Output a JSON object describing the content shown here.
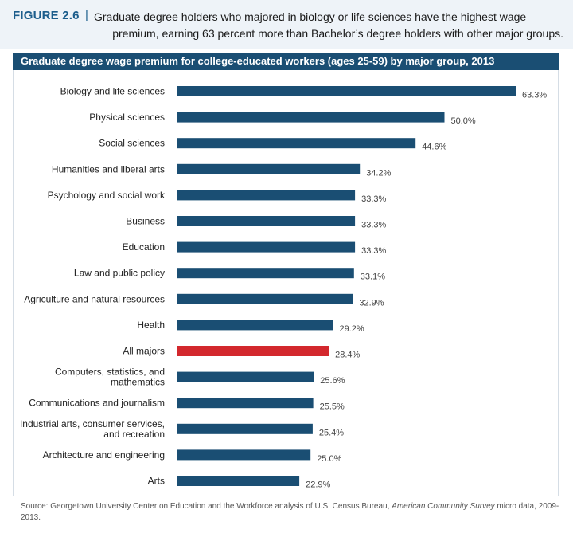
{
  "figure": {
    "label": "FIGURE 2.6",
    "separator": "|",
    "caption_line1": "Graduate degree holders who majored in biology or life sciences have the highest wage",
    "caption_line2": "premium, earning 63 percent more than Bachelor’s degree holders with other major groups."
  },
  "source": {
    "prefix": "Source: Georgetown University Center on Education and the Workforce analysis of U.S. Census Bureau, ",
    "italic": "American Community Survey",
    "suffix": " micro data, 2009-2013."
  },
  "chart_data": {
    "type": "bar",
    "orientation": "horizontal",
    "title": "Graduate degree wage premium for college-educated workers (ages 25-59) by major group, 2013",
    "categories": [
      [
        "Biology and life sciences"
      ],
      [
        "Physical sciences"
      ],
      [
        "Social sciences"
      ],
      [
        "Humanities and liberal arts"
      ],
      [
        "Psychology and social work"
      ],
      [
        "Business"
      ],
      [
        "Education"
      ],
      [
        "Law and public policy"
      ],
      [
        "Agriculture and natural resources"
      ],
      [
        "Health"
      ],
      [
        "All majors"
      ],
      [
        "Computers, statistics, and",
        "mathematics"
      ],
      [
        "Communications and journalism"
      ],
      [
        "Industrial arts, consumer services,",
        "and recreation"
      ],
      [
        "Architecture and engineering"
      ],
      [
        "Arts"
      ]
    ],
    "values": [
      63.3,
      50.0,
      44.6,
      34.2,
      33.3,
      33.3,
      33.3,
      33.1,
      32.9,
      29.2,
      28.4,
      25.6,
      25.5,
      25.4,
      25.0,
      22.9
    ],
    "value_labels": [
      "63.3%",
      "50.0%",
      "44.6%",
      "34.2%",
      "33.3%",
      "33.3%",
      "33.3%",
      "33.1%",
      "32.9%",
      "29.2%",
      "28.4%",
      "25.6%",
      "25.5%",
      "25.4%",
      "25.0%",
      "22.9%"
    ],
    "highlight_category": "All majors",
    "colors": {
      "bar": "#1a4e73",
      "highlight": "#d3282d",
      "title_bar": "#1a4e73",
      "accent": "#1b5d8c"
    },
    "xlim": [
      0,
      63.3
    ],
    "grid": false,
    "legend": "none"
  }
}
